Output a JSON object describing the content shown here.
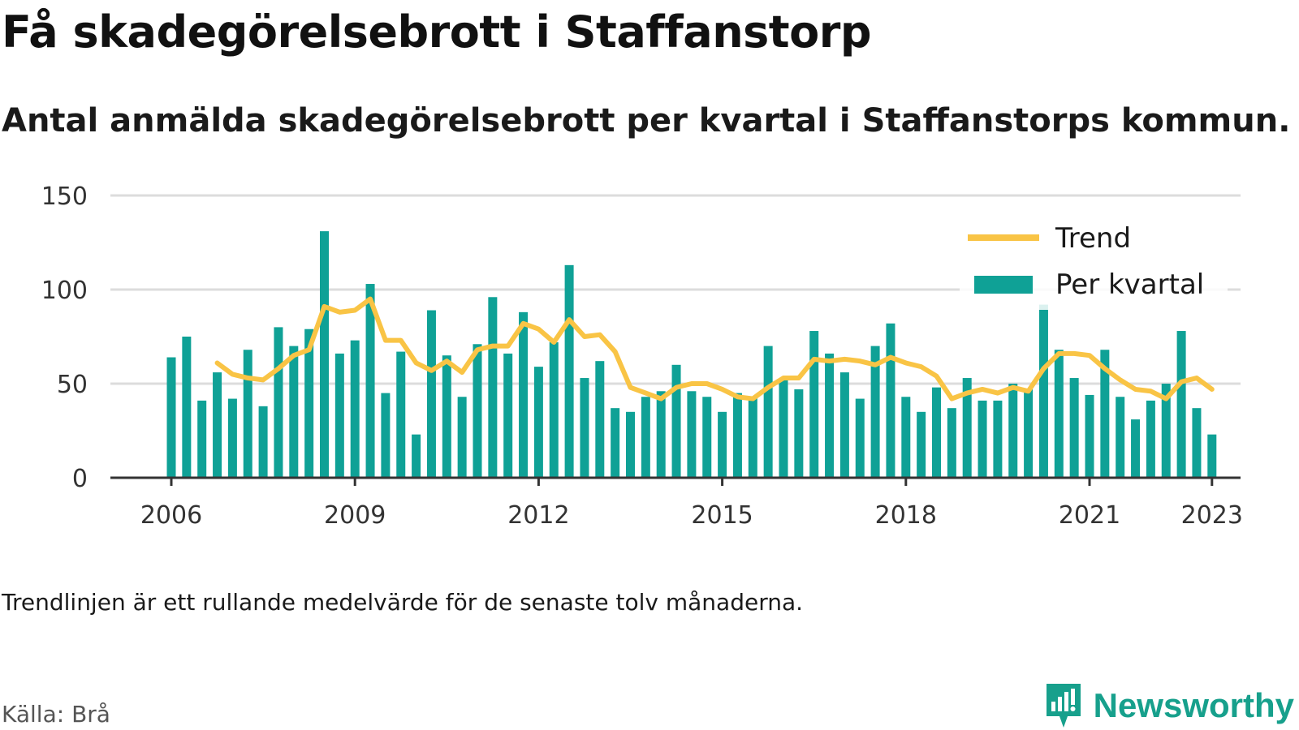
{
  "header": {
    "title": "Få skadegörelsebrott i Staffanstorp",
    "subtitle": "Antal anmälda skadegörelsebrott per kvartal i Staffanstorps kommun."
  },
  "footer": {
    "note": "Trendlinjen är ett rullande medelvärde för de senaste tolv månaderna.",
    "source": "Källa: Brå",
    "brand": "Newsworthy"
  },
  "colors": {
    "bars": "#0fa196",
    "trend": "#f9c445",
    "grid": "#dcdcdc",
    "axis": "#333333",
    "brand": "#17a08c"
  },
  "chart_data": {
    "type": "bar",
    "title": "",
    "xlabel": "",
    "ylabel": "",
    "ylim": [
      0,
      150
    ],
    "yticks": [
      0,
      50,
      100,
      150
    ],
    "xticks": [
      "2006",
      "2009",
      "2012",
      "2015",
      "2018",
      "2021",
      "2023"
    ],
    "grid": true,
    "legend_position": "top-right",
    "legend": [
      "Trend",
      "Per kvartal"
    ],
    "categories": [
      "2006 Q1",
      "2006 Q2",
      "2006 Q3",
      "2006 Q4",
      "2007 Q1",
      "2007 Q2",
      "2007 Q3",
      "2007 Q4",
      "2008 Q1",
      "2008 Q2",
      "2008 Q3",
      "2008 Q4",
      "2009 Q1",
      "2009 Q2",
      "2009 Q3",
      "2009 Q4",
      "2010 Q1",
      "2010 Q2",
      "2010 Q3",
      "2010 Q4",
      "2011 Q1",
      "2011 Q2",
      "2011 Q3",
      "2011 Q4",
      "2012 Q1",
      "2012 Q2",
      "2012 Q3",
      "2012 Q4",
      "2013 Q1",
      "2013 Q2",
      "2013 Q3",
      "2013 Q4",
      "2014 Q1",
      "2014 Q2",
      "2014 Q3",
      "2014 Q4",
      "2015 Q1",
      "2015 Q2",
      "2015 Q3",
      "2015 Q4",
      "2016 Q1",
      "2016 Q2",
      "2016 Q3",
      "2016 Q4",
      "2017 Q1",
      "2017 Q2",
      "2017 Q3",
      "2017 Q4",
      "2018 Q1",
      "2018 Q2",
      "2018 Q3",
      "2018 Q4",
      "2019 Q1",
      "2019 Q2",
      "2019 Q3",
      "2019 Q4",
      "2020 Q1",
      "2020 Q2",
      "2020 Q3",
      "2020 Q4",
      "2021 Q1",
      "2021 Q2",
      "2021 Q3",
      "2021 Q4",
      "2022 Q1",
      "2022 Q2",
      "2022 Q3",
      "2022 Q4",
      "2023 Q1"
    ],
    "series": [
      {
        "name": "Per kvartal",
        "type": "bar",
        "values": [
          64,
          75,
          41,
          56,
          42,
          68,
          38,
          80,
          70,
          79,
          131,
          66,
          73,
          103,
          45,
          67,
          23,
          89,
          65,
          43,
          71,
          96,
          66,
          88,
          59,
          72,
          113,
          53,
          62,
          37,
          35,
          43,
          46,
          60,
          46,
          43,
          35,
          45,
          43,
          70,
          52,
          47,
          78,
          66,
          56,
          42,
          70,
          82,
          43,
          35,
          48,
          37,
          53,
          41,
          41,
          50,
          47,
          92,
          68,
          53,
          44,
          68,
          43,
          31,
          41,
          50,
          78,
          37,
          23
        ]
      },
      {
        "name": "Trend",
        "type": "line",
        "values": [
          null,
          null,
          null,
          61,
          55,
          53,
          52,
          58,
          65,
          68,
          91,
          88,
          89,
          95,
          73,
          73,
          61,
          57,
          62,
          56,
          68,
          70,
          70,
          82,
          79,
          72,
          84,
          75,
          76,
          67,
          48,
          45,
          42,
          48,
          50,
          50,
          47,
          43,
          42,
          48,
          53,
          53,
          63,
          62,
          63,
          62,
          60,
          64,
          61,
          59,
          54,
          42,
          45,
          47,
          45,
          48,
          46,
          58,
          66,
          66,
          65,
          58,
          52,
          47,
          46,
          42,
          51,
          53,
          47
        ]
      }
    ]
  }
}
